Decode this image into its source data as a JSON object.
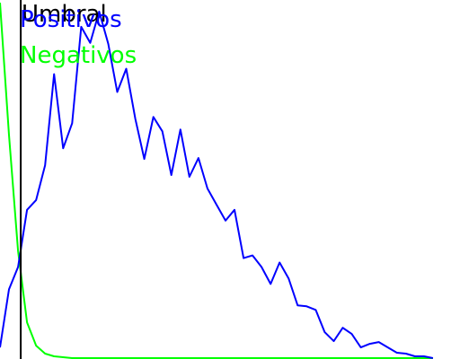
{
  "chart_data": {
    "type": "line",
    "title": "",
    "xlabel": "",
    "ylabel": "",
    "grid": false,
    "legend_position": "top-left",
    "x": [
      0,
      1,
      2,
      3,
      4,
      5,
      6,
      7,
      8,
      9,
      10,
      11,
      12,
      13,
      14,
      15,
      16,
      17,
      18,
      19,
      20,
      21,
      22,
      23,
      24,
      25,
      26,
      27,
      28,
      29,
      30,
      31,
      32,
      33,
      34,
      35,
      36,
      37,
      38,
      39,
      40,
      41,
      42,
      43,
      44,
      45,
      46,
      47,
      48
    ],
    "xlim": [
      0,
      51
    ],
    "ylim": [
      0,
      400
    ],
    "series": [
      {
        "name": "Positivos",
        "color": "#0000ff",
        "values": [
          12,
          77,
          102,
          166,
          177,
          216,
          318,
          235,
          263,
          371,
          353,
          388,
          352,
          298,
          324,
          268,
          223,
          270,
          254,
          205,
          256,
          203,
          224,
          190,
          172,
          154,
          166,
          112,
          115,
          102,
          83,
          107,
          89,
          59,
          58,
          54,
          29,
          19,
          34,
          27,
          12,
          16,
          18,
          12,
          6,
          5,
          2,
          2,
          0
        ]
      },
      {
        "name": "Negativos",
        "color": "#00ff00",
        "values": [
          398,
          250,
          120,
          40,
          14,
          5,
          2,
          1,
          0,
          0,
          0,
          0,
          0,
          0,
          0,
          0,
          0,
          0,
          0,
          0,
          0,
          0,
          0,
          0,
          0,
          0,
          0,
          0,
          0,
          0,
          0,
          0,
          0,
          0,
          0,
          0,
          0,
          0,
          0,
          0,
          0,
          0,
          0,
          0,
          0,
          0,
          0,
          0,
          0
        ]
      }
    ],
    "annotations": [
      {
        "type": "vline",
        "x": 2.3,
        "label": "Umbral",
        "color": "#000000"
      }
    ]
  }
}
